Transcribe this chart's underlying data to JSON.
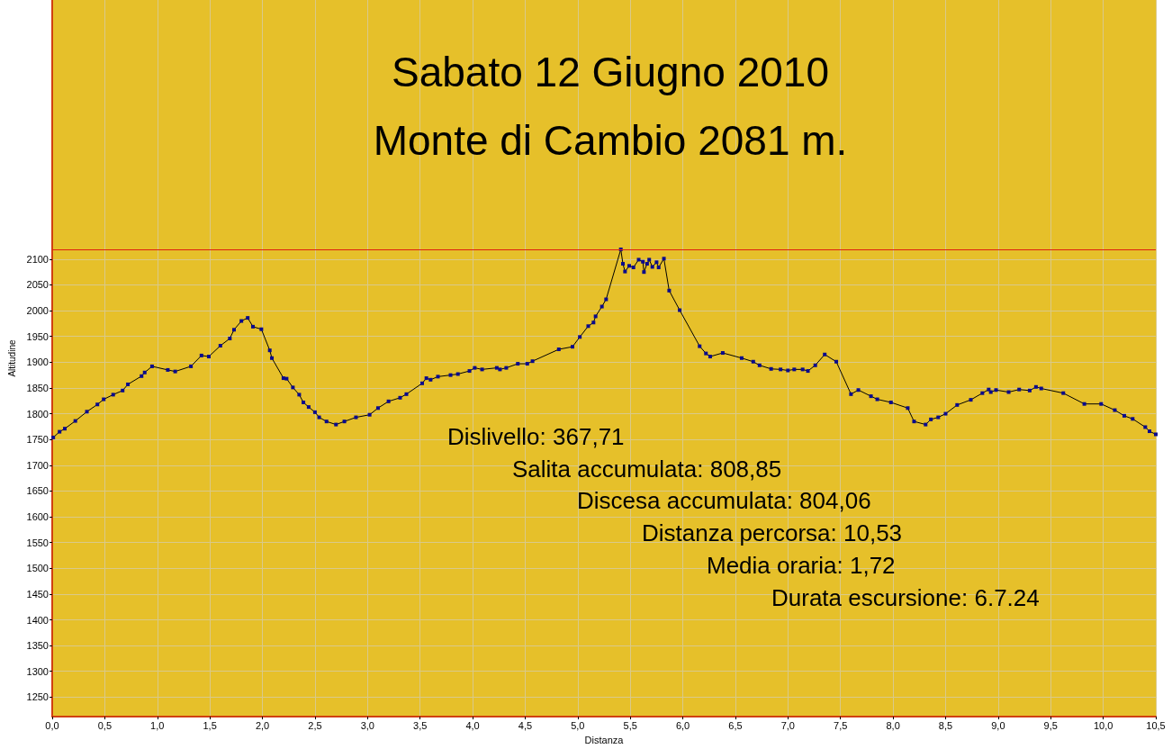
{
  "chart_data": {
    "type": "line",
    "title": "Sabato 12 Giugno 2010",
    "subtitle": "Monte di Cambio 2081 m.",
    "xlabel": "Distanza",
    "ylabel": "Altitudine",
    "x": [
      0.01,
      0.07,
      0.12,
      0.22,
      0.33,
      0.43,
      0.49,
      0.58,
      0.67,
      0.72,
      0.85,
      0.88,
      0.95,
      1.1,
      1.17,
      1.32,
      1.42,
      1.49,
      1.6,
      1.69,
      1.73,
      1.8,
      1.86,
      1.91,
      1.99,
      2.07,
      2.09,
      2.2,
      2.23,
      2.29,
      2.35,
      2.39,
      2.44,
      2.5,
      2.54,
      2.61,
      2.7,
      2.78,
      2.89,
      3.02,
      3.1,
      3.2,
      3.31,
      3.37,
      3.52,
      3.56,
      3.6,
      3.67,
      3.79,
      3.86,
      3.97,
      4.02,
      4.09,
      4.23,
      4.26,
      4.32,
      4.43,
      4.52,
      4.57,
      4.82,
      4.95,
      5.02,
      5.1,
      5.15,
      5.17,
      5.23,
      5.27,
      5.41,
      5.43,
      5.45,
      5.49,
      5.53,
      5.58,
      5.62,
      5.63,
      5.66,
      5.68,
      5.71,
      5.75,
      5.77,
      5.82,
      5.87,
      5.97,
      6.16,
      6.22,
      6.26,
      6.38,
      6.56,
      6.67,
      6.73,
      6.84,
      6.93,
      7.0,
      7.06,
      7.14,
      7.19,
      7.26,
      7.35,
      7.46,
      7.6,
      7.67,
      7.79,
      7.85,
      7.98,
      8.14,
      8.2,
      8.31,
      8.36,
      8.43,
      8.5,
      8.61,
      8.74,
      8.85,
      8.91,
      8.93,
      8.98,
      9.1,
      9.2,
      9.3,
      9.36,
      9.41,
      9.62,
      9.82,
      9.98,
      10.11,
      10.2,
      10.28,
      10.4,
      10.44,
      10.5
    ],
    "series": [
      {
        "color": "#0a0a8c",
        "values": [
          1754,
          1765,
          1771,
          1786,
          1804,
          1818,
          1828,
          1837,
          1845,
          1857,
          1873,
          1880,
          1892,
          1885,
          1882,
          1892,
          1913,
          1911,
          1932,
          1946,
          1963,
          1980,
          1986,
          1969,
          1964,
          1923,
          1908,
          1869,
          1868,
          1851,
          1837,
          1822,
          1813,
          1803,
          1793,
          1785,
          1779,
          1785,
          1793,
          1798,
          1811,
          1824,
          1831,
          1838,
          1859,
          1869,
          1866,
          1872,
          1875,
          1877,
          1883,
          1889,
          1886,
          1889,
          1886,
          1889,
          1897,
          1897,
          1902,
          1925,
          1930,
          1949,
          1970,
          1977,
          1989,
          2008,
          2022,
          2119,
          2091,
          2076,
          2087,
          2084,
          2099,
          2095,
          2075,
          2091,
          2099,
          2085,
          2094,
          2084,
          2101,
          2039,
          2001,
          1931,
          1917,
          1911,
          1918,
          1908,
          1901,
          1894,
          1887,
          1886,
          1884,
          1886,
          1886,
          1883,
          1894,
          1915,
          1901,
          1838,
          1846,
          1834,
          1828,
          1822,
          1811,
          1785,
          1779,
          1789,
          1793,
          1800,
          1817,
          1827,
          1840,
          1847,
          1842,
          1846,
          1842,
          1847,
          1845,
          1852,
          1849,
          1840,
          1819,
          1819,
          1807,
          1796,
          1790,
          1774,
          1766,
          1760
        ]
      }
    ],
    "xlim": [
      0,
      10.5
    ],
    "xticks": [
      {
        "value": 0,
        "label": "0,0"
      },
      {
        "value": 0.5,
        "label": "0,5"
      },
      {
        "value": 1,
        "label": "1,0"
      },
      {
        "value": 1.5,
        "label": "1,5"
      },
      {
        "value": 2,
        "label": "2,0"
      },
      {
        "value": 2.5,
        "label": "2,5"
      },
      {
        "value": 3,
        "label": "3,0"
      },
      {
        "value": 3.5,
        "label": "3,5"
      },
      {
        "value": 4,
        "label": "4,0"
      },
      {
        "value": 4.5,
        "label": "4,5"
      },
      {
        "value": 5,
        "label": "5,0"
      },
      {
        "value": 5.5,
        "label": "5,5"
      },
      {
        "value": 6,
        "label": "6,0"
      },
      {
        "value": 6.5,
        "label": "6,5"
      },
      {
        "value": 7,
        "label": "7,0"
      },
      {
        "value": 7.5,
        "label": "7,5"
      },
      {
        "value": 8,
        "label": "8,0"
      },
      {
        "value": 8.5,
        "label": "8,5"
      },
      {
        "value": 9,
        "label": "9,0"
      },
      {
        "value": 9.5,
        "label": "9,5"
      },
      {
        "value": 10,
        "label": "10,0"
      },
      {
        "value": 10.5,
        "label": "10,5"
      }
    ],
    "ylim": [
      1212,
      2603
    ],
    "yticks": [
      1250,
      1300,
      1350,
      1400,
      1450,
      1500,
      1550,
      1600,
      1650,
      1700,
      1750,
      1800,
      1850,
      1900,
      1950,
      2000,
      2050,
      2100
    ],
    "ref_lines": [
      {
        "axis": "y",
        "value": 2119,
        "color": "#e02010"
      }
    ],
    "annotations": [
      "Dislivello: 367,71",
      "Salita accumulata: 808,85",
      "Discesa accumulata: 804,06",
      "Distanza percorsa: 10,53",
      "Media oraria: 1,72",
      "Durata escursione: 6.7.24"
    ],
    "grid": true,
    "marker": "square",
    "line_style": "solid"
  }
}
